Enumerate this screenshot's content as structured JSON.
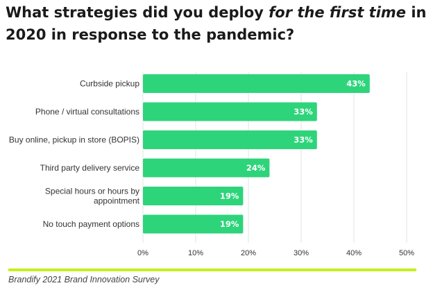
{
  "title": {
    "before": "What strategies did you deploy ",
    "emphasis": "for the first time",
    "after": " in 2020 in response to the pandemic?"
  },
  "source": "Brandify 2021 Brand Innovation Survey",
  "colors": {
    "bar": "#2ed47a",
    "accent_line": "#c6f01a",
    "grid": "#e3e3e3"
  },
  "chart_data": {
    "type": "bar",
    "orientation": "horizontal",
    "categories": [
      [
        "Curbside pickup"
      ],
      [
        "Phone / virtual consultations"
      ],
      [
        "Buy online, pickup in store (BOPIS)"
      ],
      [
        "Third party delivery service"
      ],
      [
        "Special hours or hours by",
        "appointment"
      ],
      [
        "No touch payment options"
      ]
    ],
    "values": [
      43,
      33,
      33,
      24,
      19,
      19
    ],
    "value_labels": [
      "43%",
      "33%",
      "33%",
      "24%",
      "19%",
      "19%"
    ],
    "xlim": [
      0,
      50
    ],
    "xticks": [
      0,
      10,
      20,
      30,
      40,
      50
    ],
    "xtick_labels": [
      "0%",
      "10%",
      "20%",
      "30%",
      "40%",
      "50%"
    ],
    "grid": true
  }
}
